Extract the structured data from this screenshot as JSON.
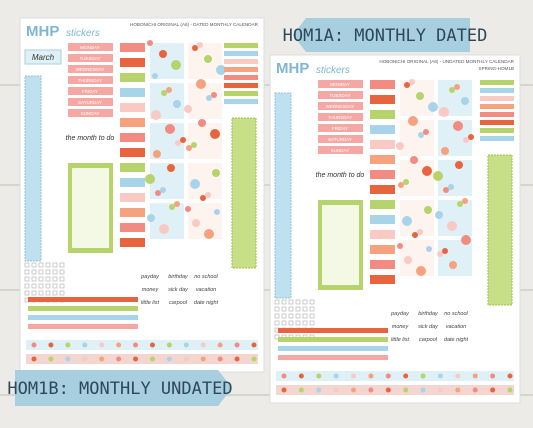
{
  "banners": {
    "top": "HOM1A: MONTHLY DATED",
    "bottom": "HOM1B: MONTHLY UNDATED"
  },
  "sheets": [
    {
      "logo": "MHP",
      "logo_sub": "stickers",
      "header": "HOBONICHI ORIGINAL (A6) - DATED MONTHLY CALENDAR",
      "month": "March",
      "weekdays": [
        "MONDAY",
        "TUESDAY",
        "WEDNESDAY",
        "THURSDAY",
        "FRIDAY",
        "SATURDAY",
        "SUNDAY"
      ],
      "todo": "the month to do",
      "labels": [
        "payday",
        "birthday",
        "no school",
        "money",
        "sick day",
        "vacation",
        "little list",
        "carpool",
        "date night"
      ]
    },
    {
      "logo": "MHP",
      "logo_sub": "stickers",
      "header": "HOBONICHI ORIGINAL (A6) - UNDATED MONTHLY CALENDAR",
      "code": "SPRING-HOM1B",
      "weekdays": [
        "MONDAY",
        "TUESDAY",
        "WEDNESDAY",
        "THURSDAY",
        "FRIDAY",
        "SATURDAY",
        "SUNDAY"
      ],
      "todo": "the month to do",
      "labels": [
        "payday",
        "birthday",
        "no school",
        "money",
        "sick day",
        "vacation",
        "little list",
        "carpool",
        "date night"
      ]
    }
  ]
}
